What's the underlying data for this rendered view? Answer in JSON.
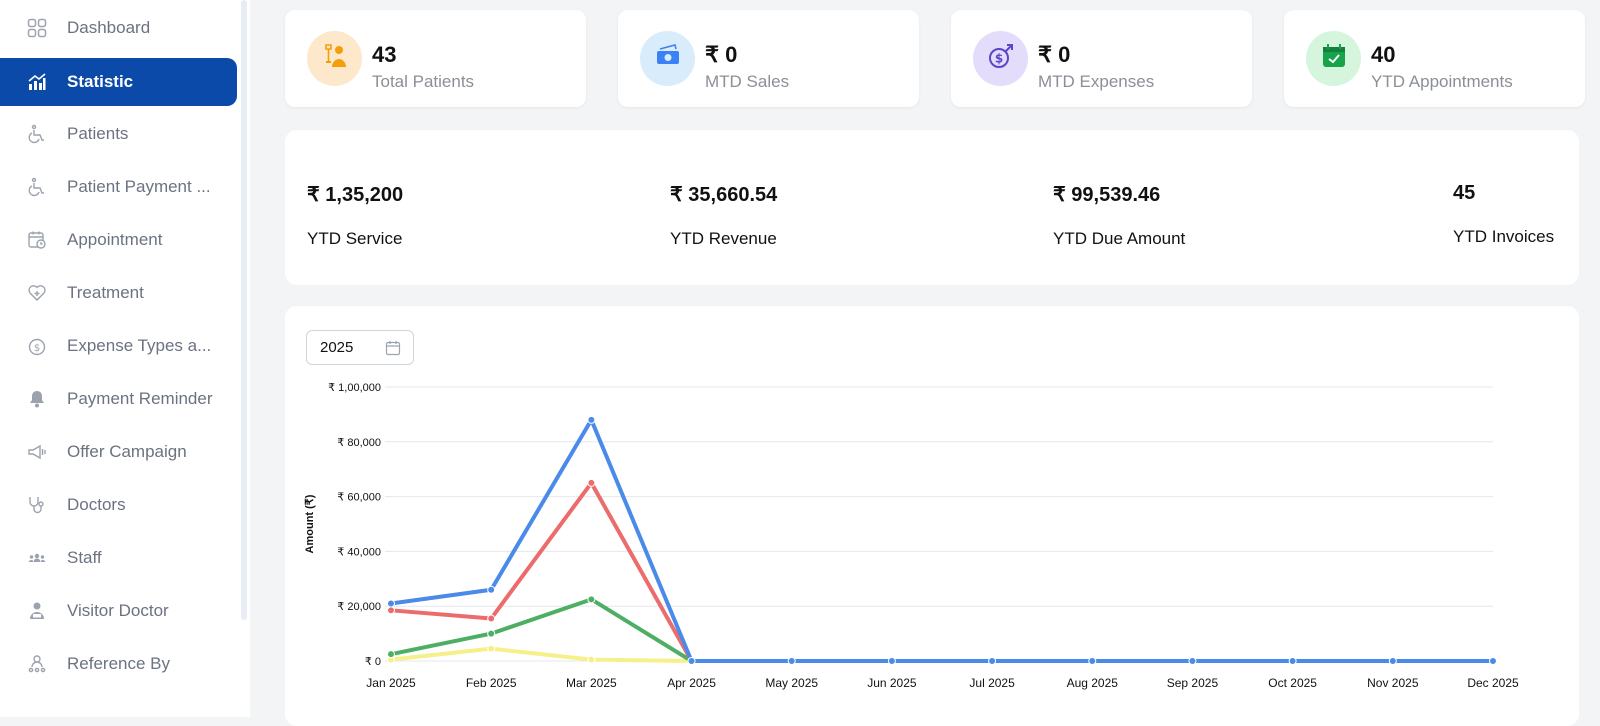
{
  "sidebar": {
    "items": [
      {
        "label": "Dashboard",
        "icon": "grid-icon",
        "active": false
      },
      {
        "label": "Statistic",
        "icon": "bar-chart-icon",
        "active": true
      },
      {
        "label": "Patients",
        "icon": "wheelchair-icon",
        "active": false
      },
      {
        "label": "Patient Payment ...",
        "icon": "wheelchair-icon",
        "active": false
      },
      {
        "label": "Appointment",
        "icon": "calendar-clock-icon",
        "active": false
      },
      {
        "label": "Treatment",
        "icon": "heart-plus-icon",
        "active": false
      },
      {
        "label": "Expense Types a...",
        "icon": "dollar-coin-icon",
        "active": false
      },
      {
        "label": "Payment Reminder",
        "icon": "bell-icon",
        "active": false
      },
      {
        "label": "Offer Campaign",
        "icon": "megaphone-icon",
        "active": false
      },
      {
        "label": "Doctors",
        "icon": "stethoscope-icon",
        "active": false
      },
      {
        "label": "Staff",
        "icon": "group-icon",
        "active": false
      },
      {
        "label": "Visitor Doctor",
        "icon": "user-badge-icon",
        "active": false
      },
      {
        "label": "Reference By",
        "icon": "user-network-icon",
        "active": false
      }
    ]
  },
  "kpis": [
    {
      "value": "43",
      "caption": "Total Patients",
      "icon": "patient-icon",
      "bg": "#fde8cc"
    },
    {
      "value": "₹ 0",
      "caption": "MTD Sales",
      "icon": "cash-icon",
      "bg": "#d9ecfb"
    },
    {
      "value": "₹ 0",
      "caption": "MTD Expenses",
      "icon": "dollar-growth-icon",
      "bg": "#e3ddfb"
    },
    {
      "value": "40",
      "caption": "YTD Appointments",
      "icon": "calendar-check-icon",
      "bg": "#d6f5dd"
    }
  ],
  "ytd": [
    {
      "value": "₹ 1,35,200",
      "caption": "YTD Service"
    },
    {
      "value": "₹ 35,660.54",
      "caption": "YTD Revenue"
    },
    {
      "value": "₹ 99,539.46",
      "caption": "YTD Due Amount"
    },
    {
      "value": "45",
      "caption": "YTD Invoices"
    }
  ],
  "filter": {
    "year": "2025"
  },
  "chart_data": {
    "type": "line",
    "ylabel": "Amount (₹)",
    "ylim": [
      0,
      100000
    ],
    "yticks": [
      {
        "value": 0,
        "label": "₹ 0"
      },
      {
        "value": 20000,
        "label": "₹ 20,000"
      },
      {
        "value": 40000,
        "label": "₹ 40,000"
      },
      {
        "value": 60000,
        "label": "₹ 60,000"
      },
      {
        "value": 80000,
        "label": "₹ 80,000"
      },
      {
        "value": 100000,
        "label": "₹ 1,00,000"
      }
    ],
    "categories": [
      "Jan 2025",
      "Feb 2025",
      "Mar 2025",
      "Apr 2025",
      "May 2025",
      "Jun 2025",
      "Jul 2025",
      "Aug 2025",
      "Sep 2025",
      "Oct 2025",
      "Nov 2025",
      "Dec 2025"
    ],
    "grid": true,
    "series": [
      {
        "color": "#4a8ae8",
        "values": [
          21000,
          26000,
          88000,
          0,
          0,
          0,
          0,
          0,
          0,
          0,
          0,
          0
        ]
      },
      {
        "color": "#ec6b6b",
        "values": [
          18500,
          15500,
          65000,
          0,
          0,
          0,
          0,
          0,
          0,
          0,
          0,
          0
        ]
      },
      {
        "color": "#4caf63",
        "values": [
          2500,
          10000,
          22500,
          0,
          0,
          0,
          0,
          0,
          0,
          0,
          0,
          0
        ]
      },
      {
        "color": "#f6f08a",
        "values": [
          500,
          4500,
          500,
          0,
          0,
          0,
          0,
          0,
          0,
          0,
          0,
          0
        ]
      }
    ]
  }
}
